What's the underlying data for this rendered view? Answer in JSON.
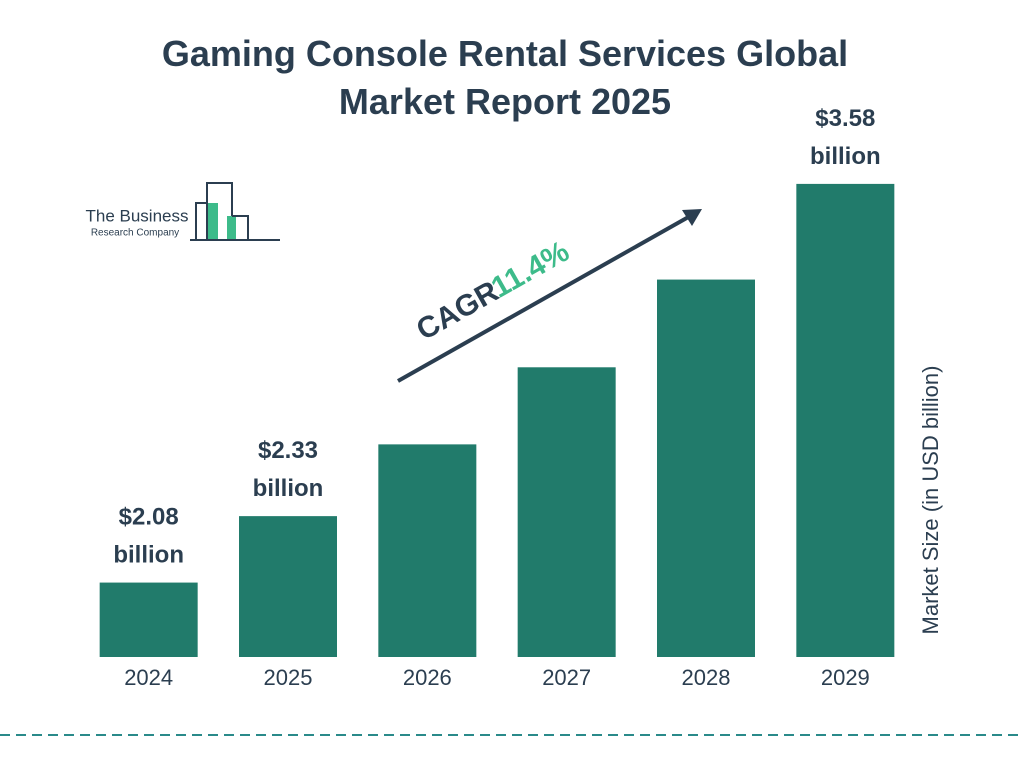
{
  "chart_data": {
    "type": "bar",
    "title": "Gaming Console Rental Services Global Market Report 2025",
    "categories": [
      "2024",
      "2025",
      "2026",
      "2027",
      "2028",
      "2029"
    ],
    "values": [
      2.08,
      2.33,
      2.6,
      2.89,
      3.22,
      3.58
    ],
    "value_labels": [
      "$2.08 billion",
      "$2.33 billion",
      null,
      null,
      null,
      "$3.58 billion"
    ],
    "color": "#217b6b",
    "ylim": [
      1.8,
      3.7
    ],
    "y_label": "Market Size (in USD billion)",
    "annotation": {
      "label": "CAGR",
      "value": "11.4%"
    },
    "logo": {
      "line1": "The Business",
      "line2": "Research Company"
    }
  }
}
